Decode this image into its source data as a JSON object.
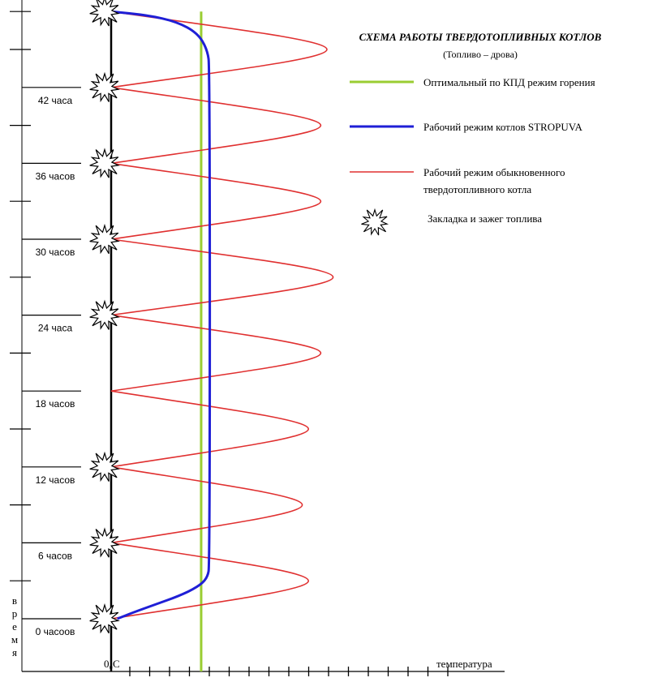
{
  "chart_data": {
    "type": "line",
    "title": "СХЕМА РАБОТЫ ТВЕРДОТОПЛИВНЫХ КОТЛОВ",
    "subtitle": "(Топливо – дрова)",
    "xlabel": "температура",
    "ylabel": "время",
    "x_origin_label": "0₀С",
    "y_tick_labels": [
      {
        "hours": 0,
        "label": "0 часоов"
      },
      {
        "hours": 6,
        "label": "6 часов"
      },
      {
        "hours": 12,
        "label": "12 часов"
      },
      {
        "hours": 18,
        "label": "18 часов"
      },
      {
        "hours": 24,
        "label": "24 часа"
      },
      {
        "hours": 30,
        "label": "30 часов"
      },
      {
        "hours": 36,
        "label": "36 часов"
      },
      {
        "hours": 42,
        "label": "42 часа"
      }
    ],
    "legend": [
      {
        "key": "optimal",
        "label": "Оптимальный по КПД режим горения",
        "color": "#9acd32",
        "style": "line"
      },
      {
        "key": "stropuva",
        "label": "Рабочий режим котлов STROPUVA",
        "color": "#1f1fd6",
        "style": "line"
      },
      {
        "key": "ordinary",
        "label": "Рабочий режим обыкновенного твердотопливного котла",
        "color": "#e03030",
        "style": "line"
      },
      {
        "key": "ignition",
        "label": "Закладка и зажег топлива",
        "color": "#000000",
        "style": "star"
      }
    ],
    "series": [
      {
        "key": "optimal",
        "points": [
          [
            7.3,
            0
          ],
          [
            7.3,
            48
          ]
        ]
      },
      {
        "key": "stropuva",
        "points": [
          [
            0.5,
            0
          ],
          [
            1.8,
            0.5
          ],
          [
            3.5,
            1.1
          ],
          [
            5.5,
            1.8
          ],
          [
            7.0,
            2.5
          ],
          [
            7.8,
            3.2
          ],
          [
            8.0,
            4.3
          ],
          [
            8.0,
            43.5
          ],
          [
            7.8,
            45
          ],
          [
            7.0,
            46.3
          ],
          [
            5.3,
            47.2
          ],
          [
            3.0,
            47.7
          ],
          [
            0,
            48
          ]
        ]
      },
      {
        "key": "ordinary",
        "points": [
          [
            0,
            0
          ],
          [
            16,
            3
          ],
          [
            0,
            6
          ],
          [
            15.5,
            9
          ],
          [
            0,
            12
          ],
          [
            16,
            15
          ],
          [
            0,
            18
          ],
          [
            17,
            21
          ],
          [
            0,
            24
          ],
          [
            18,
            27
          ],
          [
            0,
            30
          ],
          [
            17,
            33
          ],
          [
            0,
            36
          ],
          [
            17,
            39
          ],
          [
            0,
            42
          ],
          [
            17.5,
            45
          ],
          [
            0,
            48
          ]
        ]
      },
      {
        "key": "ignition",
        "points": [
          [
            0,
            0
          ],
          [
            0,
            6
          ],
          [
            0,
            12
          ],
          [
            0,
            24
          ],
          [
            0,
            30
          ],
          [
            0,
            36
          ],
          [
            0,
            42
          ],
          [
            0,
            48
          ]
        ]
      }
    ]
  }
}
